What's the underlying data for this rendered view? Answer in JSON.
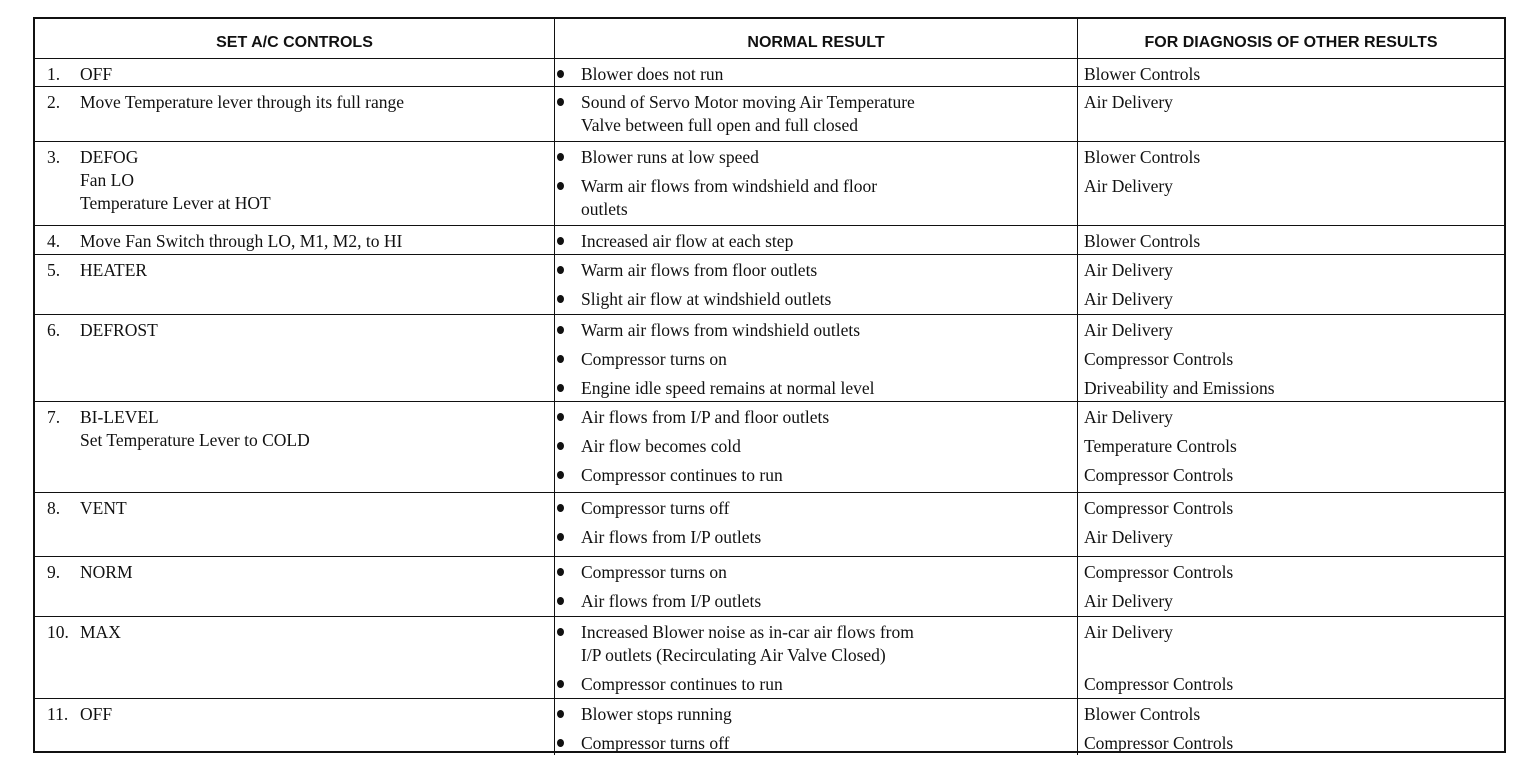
{
  "headers": [
    "SET A/C CONTROLS",
    "NORMAL RESULT",
    "FOR DIAGNOSIS OF OTHER RESULTS"
  ],
  "rows": [
    {
      "num": "1.",
      "controls": [
        "OFF"
      ],
      "results": [
        [
          "Blower does not run"
        ]
      ],
      "diagnosis": [
        "Blower Controls"
      ]
    },
    {
      "num": "2.",
      "controls": [
        "Move Temperature lever through its full range"
      ],
      "results": [
        [
          "Sound of Servo Motor moving Air Temperature",
          "Valve between full open and full closed"
        ]
      ],
      "diagnosis": [
        "Air Delivery"
      ]
    },
    {
      "num": "3.",
      "controls": [
        "DEFOG",
        "Fan LO",
        "Temperature Lever at HOT"
      ],
      "results": [
        [
          "Blower runs at low speed"
        ],
        [
          "Warm air flows from windshield and floor",
          "outlets"
        ]
      ],
      "diagnosis": [
        "Blower Controls",
        "Air Delivery"
      ]
    },
    {
      "num": "4.",
      "controls": [
        "Move Fan Switch through LO, M1, M2, to HI"
      ],
      "results": [
        [
          "Increased air flow at each step"
        ]
      ],
      "diagnosis": [
        "Blower Controls"
      ]
    },
    {
      "num": "5.",
      "controls": [
        "HEATER"
      ],
      "results": [
        [
          "Warm air flows from floor outlets"
        ],
        [
          "Slight air flow at windshield outlets"
        ]
      ],
      "diagnosis": [
        "Air Delivery",
        "Air Delivery"
      ]
    },
    {
      "num": "6.",
      "controls": [
        "DEFROST"
      ],
      "results": [
        [
          "Warm air flows from windshield outlets"
        ],
        [
          "Compressor turns on"
        ],
        [
          "Engine idle speed remains at normal level"
        ]
      ],
      "diagnosis": [
        "Air Delivery",
        "Compressor Controls",
        "Driveability and Emissions"
      ]
    },
    {
      "num": "7.",
      "controls": [
        "BI-LEVEL",
        "Set Temperature Lever to COLD"
      ],
      "results": [
        [
          "Air flows from I/P and floor outlets"
        ],
        [
          "Air flow becomes cold"
        ],
        [
          "Compressor continues to run"
        ]
      ],
      "diagnosis": [
        "Air Delivery",
        "Temperature Controls",
        "Compressor Controls"
      ]
    },
    {
      "num": "8.",
      "controls": [
        "VENT"
      ],
      "results": [
        [
          "Compressor turns off"
        ],
        [
          "Air flows from I/P outlets"
        ]
      ],
      "diagnosis": [
        "Compressor Controls",
        "Air Delivery"
      ]
    },
    {
      "num": "9.",
      "controls": [
        "NORM"
      ],
      "results": [
        [
          "Compressor turns on"
        ],
        [
          "Air flows from I/P outlets"
        ]
      ],
      "diagnosis": [
        "Compressor Controls",
        "Air Delivery"
      ]
    },
    {
      "num": "10.",
      "controls": [
        "MAX"
      ],
      "results": [
        [
          "Increased Blower noise as in-car air flows from",
          "I/P outlets (Recirculating Air Valve Closed)"
        ],
        [
          "Compressor continues to run"
        ]
      ],
      "diagnosis": [
        "Air Delivery",
        "Compressor Controls"
      ]
    },
    {
      "num": "11.",
      "controls": [
        "OFF"
      ],
      "results": [
        [
          "Blower stops running"
        ],
        [
          "Compressor turns off"
        ]
      ],
      "diagnosis": [
        "Blower Controls",
        "Compressor Controls"
      ]
    }
  ]
}
